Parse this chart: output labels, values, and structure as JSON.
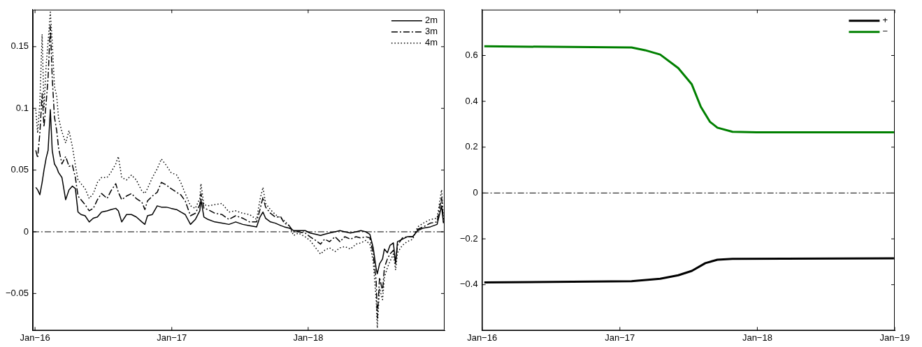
{
  "chart_data": [
    {
      "type": "line",
      "xlim": [
        "2015-12-26",
        "2019-01-01"
      ],
      "ylim": [
        -0.08,
        0.18
      ],
      "xticks": [
        {
          "value": "2016-01-01",
          "label": "Jan−16"
        },
        {
          "value": "2017-01-01",
          "label": "Jan−17"
        },
        {
          "value": "2018-01-01",
          "label": "Jan−18"
        }
      ],
      "yticks": [
        {
          "value": -0.05,
          "label": "−0.05"
        },
        0,
        0.05,
        0.1,
        0.15
      ],
      "grid": false,
      "legend": "top right",
      "marker": "none",
      "ref_lines": [
        {
          "axis": "y",
          "value": 0,
          "color": "#000000",
          "line_style": "dashdot"
        }
      ],
      "x": [
        "2016-01-03",
        "2016-01-08",
        "2016-01-14",
        "2016-01-20",
        "2016-01-25",
        "2016-01-31",
        "2016-02-05",
        "2016-02-11",
        "2016-02-16",
        "2016-02-22",
        "2016-02-28",
        "2016-03-04",
        "2016-03-13",
        "2016-03-23",
        "2016-04-01",
        "2016-04-10",
        "2016-04-18",
        "2016-04-25",
        "2016-05-03",
        "2016-05-14",
        "2016-05-25",
        "2016-06-05",
        "2016-06-16",
        "2016-06-27",
        "2016-07-12",
        "2016-07-22",
        "2016-08-04",
        "2016-08-11",
        "2016-08-20",
        "2016-09-02",
        "2016-09-15",
        "2016-09-28",
        "2016-10-13",
        "2016-10-21",
        "2016-10-28",
        "2016-11-10",
        "2016-11-23",
        "2016-12-04",
        "2016-12-17",
        "2016-12-30",
        "2017-01-14",
        "2017-01-25",
        "2017-02-06",
        "2017-02-20",
        "2017-03-05",
        "2017-03-17",
        "2017-03-20",
        "2017-03-28",
        "2017-04-08",
        "2017-04-26",
        "2017-05-15",
        "2017-06-03",
        "2017-06-21",
        "2017-07-10",
        "2017-07-28",
        "2017-08-16",
        "2017-08-25",
        "2017-09-02",
        "2017-09-09",
        "2017-09-22",
        "2017-10-05",
        "2017-10-20",
        "2017-10-29",
        "2017-11-11",
        "2017-11-23",
        "2017-12-06",
        "2017-12-24",
        "2018-01-06",
        "2018-01-21",
        "2018-02-03",
        "2018-02-14",
        "2018-02-27",
        "2018-03-14",
        "2018-03-27",
        "2018-04-09",
        "2018-04-24",
        "2018-05-09",
        "2018-05-22",
        "2018-06-04",
        "2018-06-15",
        "2018-06-24",
        "2018-07-02",
        "2018-07-05",
        "2018-07-11",
        "2018-07-19",
        "2018-07-24",
        "2018-08-01",
        "2018-08-08",
        "2018-08-17",
        "2018-08-23",
        "2018-08-28",
        "2018-09-10",
        "2018-09-23",
        "2018-10-08",
        "2018-10-21",
        "2018-11-05",
        "2018-11-24",
        "2018-12-12",
        "2018-12-24",
        "2018-12-29"
      ],
      "series": [
        {
          "name": "2m",
          "color": "#000000",
          "line_style": "solid",
          "values": [
            0.036,
            0.034,
            0.03,
            0.04,
            0.05,
            0.06,
            0.066,
            0.099,
            0.066,
            0.055,
            0.052,
            0.048,
            0.044,
            0.026,
            0.034,
            0.037,
            0.035,
            0.016,
            0.014,
            0.013,
            0.008,
            0.011,
            0.012,
            0.016,
            0.017,
            0.018,
            0.019,
            0.017,
            0.008,
            0.014,
            0.014,
            0.012,
            0.008,
            0.006,
            0.013,
            0.014,
            0.021,
            0.02,
            0.02,
            0.019,
            0.018,
            0.016,
            0.014,
            0.006,
            0.01,
            0.017,
            0.026,
            0.012,
            0.01,
            0.008,
            0.007,
            0.006,
            0.008,
            0.006,
            0.005,
            0.004,
            0.012,
            0.016,
            0.011,
            0.008,
            0.007,
            0.005,
            0.004,
            0.003,
            0.001,
            0.001,
            0.001,
            -0.001,
            -0.002,
            -0.003,
            -0.002,
            -0.001,
            0,
            0.001,
            0,
            -0.001,
            0,
            0.001,
            0,
            -0.002,
            -0.013,
            -0.03,
            -0.034,
            -0.026,
            -0.022,
            -0.014,
            -0.017,
            -0.011,
            -0.009,
            -0.026,
            -0.008,
            -0.006,
            -0.004,
            -0.004,
            0.001,
            0.003,
            0.004,
            0.006,
            0.021,
            0.007
          ]
        },
        {
          "name": "3m",
          "color": "#000000",
          "line_style": "dashdot",
          "values": [
            0.066,
            0.06,
            0.08,
            0.112,
            0.085,
            0.105,
            0.125,
            0.167,
            0.125,
            0.093,
            0.082,
            0.068,
            0.055,
            0.061,
            0.053,
            0.054,
            0.044,
            0.029,
            0.026,
            0.022,
            0.017,
            0.019,
            0.026,
            0.031,
            0.027,
            0.033,
            0.039,
            0.032,
            0.026,
            0.029,
            0.031,
            0.027,
            0.024,
            0.018,
            0.025,
            0.029,
            0.032,
            0.04,
            0.038,
            0.035,
            0.032,
            0.03,
            0.025,
            0.013,
            0.015,
            0.022,
            0.031,
            0.019,
            0.018,
            0.015,
            0.014,
            0.01,
            0.013,
            0.011,
            0.008,
            0.008,
            0.018,
            0.028,
            0.02,
            0.015,
            0.012,
            0.012,
            0.007,
            0.005,
            0,
            0,
            -0.001,
            -0.004,
            -0.007,
            -0.01,
            -0.006,
            -0.008,
            -0.004,
            -0.008,
            -0.004,
            -0.006,
            -0.004,
            -0.005,
            -0.004,
            -0.005,
            -0.018,
            -0.04,
            -0.07,
            -0.037,
            -0.048,
            -0.029,
            -0.022,
            -0.018,
            -0.015,
            -0.024,
            -0.011,
            -0.005,
            -0.004,
            -0.004,
            0.002,
            0.004,
            0.007,
            0.008,
            0.028,
            0.008
          ]
        },
        {
          "name": "4m",
          "color": "#000000",
          "line_style": "dotted",
          "values": [
            0.099,
            0.08,
            0.105,
            0.16,
            0.1,
            0.136,
            0.154,
            0.178,
            0.154,
            0.118,
            0.11,
            0.092,
            0.081,
            0.072,
            0.082,
            0.069,
            0.054,
            0.042,
            0.039,
            0.035,
            0.027,
            0.031,
            0.04,
            0.044,
            0.044,
            0.048,
            0.055,
            0.061,
            0.044,
            0.042,
            0.046,
            0.042,
            0.033,
            0.031,
            0.035,
            0.044,
            0.051,
            0.059,
            0.054,
            0.048,
            0.046,
            0.04,
            0.031,
            0.021,
            0.019,
            0.027,
            0.039,
            0.022,
            0.021,
            0.022,
            0.023,
            0.016,
            0.017,
            0.015,
            0.014,
            0.01,
            0.026,
            0.036,
            0.023,
            0.018,
            0.014,
            0.011,
            0.009,
            0.005,
            -0.003,
            -0.001,
            -0.004,
            -0.007,
            -0.013,
            -0.018,
            -0.015,
            -0.013,
            -0.016,
            -0.013,
            -0.012,
            -0.014,
            -0.01,
            -0.009,
            -0.007,
            -0.01,
            -0.024,
            -0.055,
            -0.078,
            -0.046,
            -0.055,
            -0.037,
            -0.029,
            -0.024,
            -0.018,
            -0.031,
            -0.017,
            -0.011,
            -0.008,
            -0.006,
            0.004,
            0.007,
            0.01,
            0.011,
            0.034,
            0.01
          ]
        }
      ]
    },
    {
      "type": "line",
      "xlim": [
        "2016-01-01",
        "2019-01-01"
      ],
      "ylim": [
        -0.6,
        0.8
      ],
      "xticks": [
        {
          "value": "2016-01-01",
          "label": "Jan−16"
        },
        {
          "value": "2017-01-01",
          "label": "Jan−17"
        },
        {
          "value": "2018-01-01",
          "label": "Jan−18"
        },
        {
          "value": "2019-01-01",
          "label": "Jan−19"
        }
      ],
      "yticks": [
        {
          "value": -0.4,
          "label": "−0.4"
        },
        {
          "value": -0.2,
          "label": "−0.2"
        },
        0,
        0.2,
        0.4,
        0.6
      ],
      "grid": false,
      "legend": "top right",
      "marker": "none",
      "line_style": "solid",
      "ref_lines": [
        {
          "axis": "y",
          "value": 0,
          "color": "#000000",
          "line_style": "dashdot"
        }
      ],
      "series": [
        {
          "name": "+",
          "color": "#000000",
          "x": [
            "2016-01-07",
            "2017-02-01",
            "2017-04-18",
            "2017-06-05",
            "2017-07-11",
            "2017-08-16",
            "2017-09-17",
            "2017-10-27",
            "2018-12-30"
          ],
          "values": [
            -0.39,
            -0.385,
            -0.374,
            -0.359,
            -0.34,
            -0.306,
            -0.291,
            -0.287,
            -0.285
          ]
        },
        {
          "name": "−",
          "color": "#008000",
          "x": [
            "2016-01-07",
            "2017-02-01",
            "2017-03-09",
            "2017-04-18",
            "2017-06-05",
            "2017-07-11",
            "2017-08-04",
            "2017-08-28",
            "2017-09-17",
            "2017-10-27",
            "2017-12-30",
            "2018-12-30"
          ],
          "values": [
            0.64,
            0.635,
            0.623,
            0.604,
            0.545,
            0.474,
            0.376,
            0.311,
            0.285,
            0.267,
            0.265,
            0.265
          ]
        }
      ]
    }
  ]
}
